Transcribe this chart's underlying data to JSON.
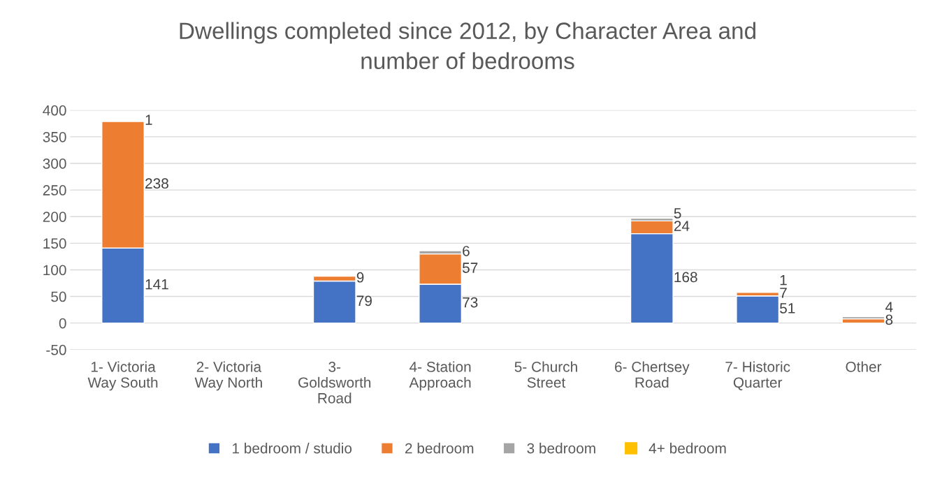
{
  "chart_data": {
    "type": "bar",
    "stacked": true,
    "title": "Dwellings completed since 2012, by Character Area and number of bedrooms",
    "categories": [
      "1- Victoria Way South",
      "2- Victoria Way North",
      "3- Goldsworth Road",
      "4- Station Approach",
      "5- Church Street",
      "6- Chertsey Road",
      "7- Historic Quarter",
      "Other"
    ],
    "series": [
      {
        "name": "1 bedroom / studio",
        "color": "#4472c4",
        "values": [
          141,
          null,
          79,
          73,
          null,
          168,
          51,
          null
        ],
        "value_labels": [
          "141",
          null,
          "79",
          "73",
          null,
          "168",
          "51",
          null
        ]
      },
      {
        "name": "2 bedroom",
        "color": "#ed7d31",
        "values": [
          238,
          null,
          9,
          57,
          null,
          24,
          7,
          8
        ],
        "value_labels": [
          "238",
          null,
          "9",
          "57",
          null,
          "24",
          "7",
          "8"
        ]
      },
      {
        "name": "3 bedroom",
        "color": "#a5a5a5",
        "values": [
          1,
          null,
          null,
          6,
          null,
          5,
          1,
          4
        ],
        "value_labels": [
          "1",
          null,
          null,
          "6",
          null,
          "5",
          "1",
          "4"
        ]
      },
      {
        "name": "4+ bedroom",
        "color": "#ffc000",
        "values": [
          null,
          null,
          null,
          null,
          null,
          null,
          null,
          null
        ]
      }
    ],
    "ylim": [
      -50,
      400
    ],
    "yticks": [
      -50,
      0,
      50,
      100,
      150,
      200,
      250,
      300,
      350,
      400
    ],
    "grid": "y",
    "legend": "bottom"
  }
}
